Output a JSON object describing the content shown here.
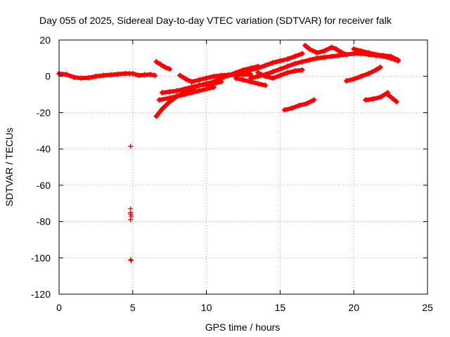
{
  "chart_data": {
    "type": "scatter",
    "title": "Day 055 of 2025, Sidereal Day-to-day VTEC variation (SDTVAR) for receiver falk",
    "xlabel": "GPS time / hours",
    "ylabel": "SDTVAR / TECUs",
    "xlim": [
      0,
      25
    ],
    "ylim": [
      -120,
      20
    ],
    "xticks": [
      0,
      5,
      10,
      15,
      20,
      25
    ],
    "yticks": [
      20,
      0,
      -20,
      -40,
      -60,
      -80,
      -100,
      -120
    ],
    "grid": true,
    "marker": "plus",
    "series": [
      {
        "name": "SDTVAR",
        "color": "#ff0000",
        "arcs": [
          [
            [
              0.0,
              1.5
            ],
            [
              0.5,
              1.0
            ],
            [
              1.0,
              -0.5
            ],
            [
              1.5,
              -1.0
            ],
            [
              2.0,
              -0.8
            ],
            [
              2.5,
              0.0
            ],
            [
              3.0,
              0.5
            ],
            [
              3.5,
              0.8
            ],
            [
              4.0,
              1.2
            ],
            [
              4.5,
              1.5
            ],
            [
              4.8,
              1.5
            ]
          ],
          [
            [
              5.0,
              1.5
            ],
            [
              5.4,
              0.5
            ],
            [
              5.8,
              0.8
            ],
            [
              6.2,
              1.0
            ],
            [
              6.5,
              0.5
            ]
          ],
          [
            [
              6.6,
              8.0
            ],
            [
              6.9,
              6.5
            ],
            [
              7.2,
              5.0
            ],
            [
              7.5,
              4.0
            ]
          ],
          [
            [
              6.6,
              -22.0
            ],
            [
              7.0,
              -18.0
            ],
            [
              7.5,
              -14.0
            ],
            [
              8.0,
              -11.0
            ],
            [
              8.5,
              -9.0
            ],
            [
              9.0,
              -7.0
            ],
            [
              9.5,
              -5.0
            ],
            [
              10.0,
              -4.0
            ],
            [
              10.5,
              -3.0
            ],
            [
              11.0,
              -1.0
            ],
            [
              11.5,
              0.5
            ],
            [
              12.0,
              2.0
            ],
            [
              12.5,
              3.5
            ],
            [
              13.0,
              4.5
            ],
            [
              13.5,
              5.5
            ]
          ],
          [
            [
              6.8,
              -13.0
            ],
            [
              7.5,
              -12.0
            ],
            [
              8.0,
              -11.0
            ],
            [
              8.5,
              -10.0
            ],
            [
              9.0,
              -9.0
            ],
            [
              9.5,
              -8.0
            ],
            [
              10.0,
              -7.0
            ],
            [
              10.5,
              -6.0
            ]
          ],
          [
            [
              7.0,
              -9.0
            ],
            [
              7.5,
              -8.5
            ],
            [
              8.0,
              -8.0
            ],
            [
              8.5,
              -7.0
            ],
            [
              9.0,
              -6.0
            ],
            [
              9.5,
              -5.0
            ],
            [
              10.0,
              -4.5
            ],
            [
              10.5,
              -4.0
            ],
            [
              11.0,
              -3.0
            ]
          ],
          [
            [
              8.2,
              0.5
            ],
            [
              8.6,
              -1.5
            ],
            [
              9.0,
              -3.0
            ],
            [
              9.5,
              -2.0
            ],
            [
              10.0,
              -1.0
            ],
            [
              10.5,
              0.0
            ],
            [
              11.0,
              0.5
            ],
            [
              11.5,
              0.8
            ],
            [
              12.0,
              1.0
            ],
            [
              12.5,
              1.0
            ],
            [
              13.0,
              1.0
            ]
          ],
          [
            [
              11.0,
              0.0
            ],
            [
              11.5,
              0.5
            ],
            [
              12.0,
              1.0
            ],
            [
              12.5,
              2.0
            ],
            [
              13.0,
              3.5
            ],
            [
              13.5,
              4.5
            ],
            [
              14.0,
              6.0
            ],
            [
              14.5,
              7.5
            ],
            [
              15.0,
              8.5
            ],
            [
              15.5,
              9.5
            ],
            [
              16.0,
              11.0
            ],
            [
              16.5,
              12.5
            ]
          ],
          [
            [
              12.0,
              -1.0
            ],
            [
              12.5,
              -2.0
            ],
            [
              13.0,
              -3.0
            ],
            [
              13.5,
              -4.0
            ],
            [
              14.0,
              -5.0
            ]
          ],
          [
            [
              13.0,
              -1.0
            ],
            [
              13.5,
              0.0
            ],
            [
              14.0,
              1.0
            ],
            [
              14.5,
              2.5
            ],
            [
              15.0,
              4.0
            ],
            [
              15.5,
              5.5
            ],
            [
              16.0,
              7.0
            ],
            [
              16.5,
              8.0
            ],
            [
              17.0,
              9.0
            ],
            [
              17.5,
              10.0
            ],
            [
              18.0,
              10.5
            ],
            [
              18.5,
              11.0
            ],
            [
              19.0,
              11.5
            ],
            [
              19.5,
              12.0
            ],
            [
              20.0,
              12.5
            ],
            [
              20.5,
              12.5
            ],
            [
              21.0,
              12.0
            ],
            [
              21.5,
              11.5
            ],
            [
              22.0,
              11.0
            ],
            [
              22.5,
              10.0
            ],
            [
              23.0,
              8.5
            ]
          ],
          [
            [
              13.5,
              2.0
            ],
            [
              14.0,
              0.0
            ],
            [
              14.5,
              -1.0
            ],
            [
              15.0,
              0.5
            ],
            [
              15.5,
              2.0
            ],
            [
              16.0,
              3.0
            ],
            [
              16.5,
              3.5
            ]
          ],
          [
            [
              16.7,
              17.0
            ],
            [
              17.0,
              15.0
            ],
            [
              17.5,
              13.0
            ],
            [
              18.0,
              14.0
            ],
            [
              18.5,
              16.0
            ],
            [
              18.8,
              15.0
            ],
            [
              19.2,
              13.0
            ],
            [
              19.5,
              12.0
            ]
          ],
          [
            [
              20.0,
              15.0
            ],
            [
              20.5,
              14.0
            ],
            [
              21.0,
              13.0
            ],
            [
              21.5,
              12.0
            ],
            [
              22.0,
              11.5
            ],
            [
              22.5,
              11.0
            ],
            [
              23.0,
              9.0
            ]
          ],
          [
            [
              15.3,
              -18.5
            ],
            [
              15.8,
              -17.5
            ],
            [
              16.3,
              -16.0
            ],
            [
              16.8,
              -15.0
            ],
            [
              17.3,
              -13.0
            ]
          ],
          [
            [
              19.5,
              -2.5
            ],
            [
              20.0,
              -1.5
            ],
            [
              20.5,
              0.0
            ],
            [
              21.0,
              1.5
            ],
            [
              21.5,
              3.5
            ],
            [
              21.8,
              5.0
            ]
          ],
          [
            [
              20.8,
              -13.0
            ],
            [
              21.3,
              -12.5
            ],
            [
              21.8,
              -11.5
            ],
            [
              22.3,
              -9.0
            ]
          ],
          [
            [
              22.3,
              -10.0
            ],
            [
              22.6,
              -12.0
            ],
            [
              22.9,
              -14.0
            ]
          ]
        ],
        "points": [
          [
            4.85,
            -38.5
          ],
          [
            4.85,
            -73.0
          ],
          [
            4.85,
            -75.0
          ],
          [
            4.85,
            -76.0
          ],
          [
            4.9,
            -77.0
          ],
          [
            4.85,
            -79.0
          ],
          [
            4.85,
            -101.0
          ],
          [
            4.9,
            -101.5
          ]
        ]
      }
    ]
  }
}
